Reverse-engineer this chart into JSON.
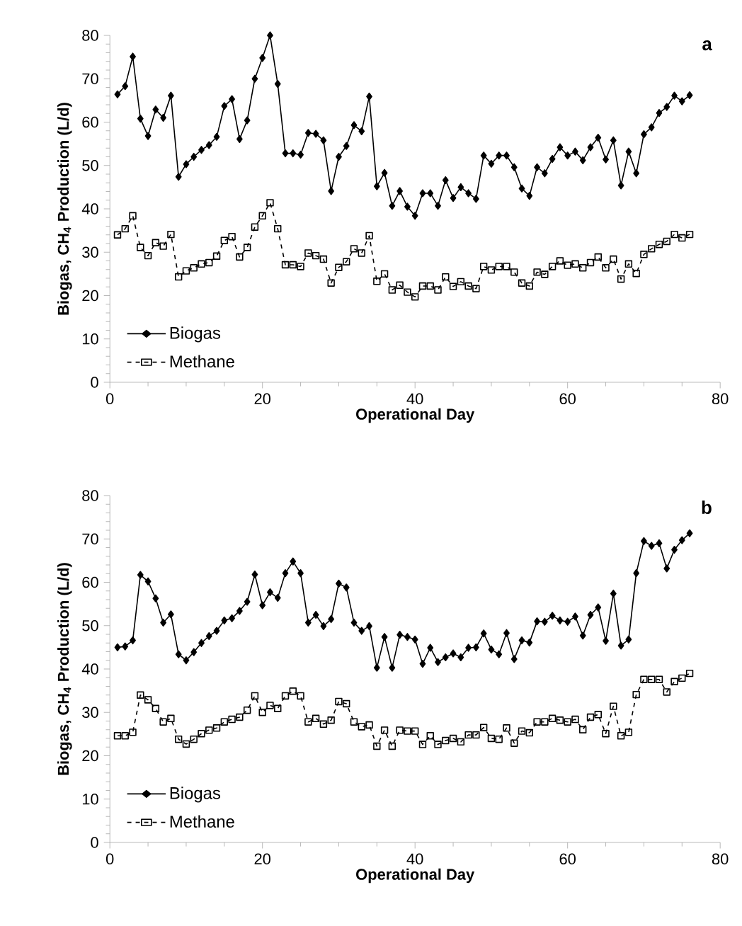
{
  "chart_data": [
    {
      "type": "line",
      "xlabel": "Operational Day",
      "ylabel": "Biogas, CH$_{4}$ Production (L/d)",
      "annotations": [
        "a"
      ],
      "legend": "bottom left",
      "xlim": [
        0,
        80
      ],
      "xticks": [
        0,
        20,
        40,
        60,
        80
      ],
      "ylim": [
        0,
        80
      ],
      "yticks": [
        0,
        10,
        20,
        30,
        40,
        50,
        60,
        70,
        80
      ],
      "x": [
        1,
        2,
        3,
        4,
        5,
        6,
        7,
        8,
        9,
        10,
        11,
        12,
        13,
        14,
        15,
        16,
        17,
        18,
        19,
        20,
        21,
        22,
        23,
        24,
        25,
        26,
        27,
        28,
        29,
        30,
        31,
        32,
        33,
        34,
        35,
        36,
        37,
        38,
        39,
        40,
        41,
        42,
        43,
        44,
        45,
        46,
        47,
        48,
        49,
        50,
        51,
        52,
        53,
        54,
        55,
        56,
        57,
        58,
        59,
        60,
        61,
        62,
        63,
        64,
        65,
        66,
        67,
        68,
        69,
        70,
        71,
        72,
        73,
        74,
        75,
        76
      ],
      "series": [
        {
          "name": "Biogas",
          "color": "#000000",
          "marker": "diamond",
          "line_style": "solid",
          "values": [
            66.4,
            68.3,
            75.1,
            60.8,
            56.8,
            62.9,
            61,
            66.1,
            47.4,
            50.3,
            52,
            53.6,
            54.7,
            56.6,
            63.7,
            65.3,
            56.1,
            60.4,
            70,
            74.8,
            80,
            68.8,
            52.8,
            52.8,
            52.5,
            57.5,
            57.3,
            55.8,
            44.1,
            52,
            54.5,
            59.3,
            57.9,
            65.9,
            45.2,
            48.3,
            40.7,
            44.1,
            40.5,
            38.4,
            43.6,
            43.6,
            40.7,
            46.6,
            42.5,
            45,
            43.6,
            42.3,
            52.3,
            50.4,
            52.3,
            52.3,
            49.6,
            44.7,
            43,
            49.6,
            48.2,
            51.5,
            54.2,
            52.3,
            53.2,
            51.2,
            54.2,
            56.4,
            51.4,
            55.8,
            45.4,
            53.2,
            48.2,
            57.2,
            58.8,
            62.1,
            63.5,
            66.1,
            64.8,
            66.2
          ]
        },
        {
          "name": "Methane",
          "color": "#000000",
          "marker": "square",
          "line_style": "dashed",
          "values": [
            34,
            35.4,
            38.4,
            31.1,
            29.2,
            32.2,
            31.4,
            34.1,
            24.3,
            25.7,
            26.4,
            27.3,
            27.6,
            29.1,
            32.7,
            33.6,
            28.9,
            31.1,
            35.8,
            38.4,
            41.4,
            35.4,
            27.1,
            27.1,
            26.7,
            29.8,
            29.2,
            28.4,
            22.9,
            26.5,
            27.8,
            30.8,
            29.8,
            33.8,
            23.3,
            25,
            21.3,
            22.4,
            20.8,
            19.7,
            22.2,
            22.2,
            21.3,
            24.3,
            22.1,
            23.2,
            22.2,
            21.6,
            26.7,
            25.9,
            26.7,
            26.7,
            25.4,
            22.9,
            22.2,
            25.4,
            24.9,
            26.7,
            28,
            27,
            27.3,
            26.4,
            27.6,
            28.9,
            26.4,
            28.4,
            23.8,
            27.3,
            25.1,
            29.5,
            30.8,
            31.8,
            32.5,
            34.1,
            33.3,
            34.1
          ]
        }
      ]
    },
    {
      "type": "line",
      "xlabel": "Operational Day",
      "ylabel": "Biogas, CH$_{4}$ Production (L/d)",
      "annotations": [
        "b"
      ],
      "legend": "bottom left",
      "xlim": [
        0,
        80
      ],
      "xticks": [
        0,
        20,
        40,
        60,
        80
      ],
      "ylim": [
        0,
        80
      ],
      "yticks": [
        0,
        10,
        20,
        30,
        40,
        50,
        60,
        70,
        80
      ],
      "x": [
        1,
        2,
        3,
        4,
        5,
        6,
        7,
        8,
        9,
        10,
        11,
        12,
        13,
        14,
        15,
        16,
        17,
        18,
        19,
        20,
        21,
        22,
        23,
        24,
        25,
        26,
        27,
        28,
        29,
        30,
        31,
        32,
        33,
        34,
        35,
        36,
        37,
        38,
        39,
        40,
        41,
        42,
        43,
        44,
        45,
        46,
        47,
        48,
        49,
        50,
        51,
        52,
        53,
        54,
        55,
        56,
        57,
        58,
        59,
        60,
        61,
        62,
        63,
        64,
        65,
        66,
        67,
        68,
        69,
        70,
        71,
        72,
        73,
        74,
        75,
        76
      ],
      "series": [
        {
          "name": "Biogas",
          "color": "#000000",
          "marker": "diamond",
          "line_style": "solid",
          "values": [
            45,
            45.2,
            46.6,
            61.7,
            60.2,
            56.3,
            50.7,
            52.6,
            43.4,
            42,
            43.9,
            46,
            47.6,
            48.8,
            51.2,
            51.7,
            53.4,
            55.5,
            61.8,
            54.7,
            57.7,
            56.4,
            62.1,
            64.8,
            62.1,
            50.7,
            52.5,
            49.9,
            51.5,
            59.7,
            58.8,
            50.7,
            48.8,
            49.9,
            40.3,
            47.4,
            40.3,
            47.9,
            47.4,
            46.8,
            41.2,
            44.9,
            41.6,
            42.7,
            43.6,
            42.7,
            44.9,
            45,
            48.2,
            44.5,
            43.4,
            48.3,
            42.3,
            46.6,
            46.1,
            51,
            50.9,
            52.3,
            51.2,
            50.9,
            52.1,
            47.7,
            52.5,
            54.2,
            46.5,
            57.4,
            45.4,
            46.8,
            62.1,
            69.5,
            68.4,
            69,
            63.2,
            67.5,
            69.7,
            71.3
          ]
        },
        {
          "name": "Methane",
          "color": "#000000",
          "marker": "square",
          "line_style": "dashed",
          "values": [
            24.6,
            24.6,
            25.4,
            34,
            32.9,
            30.9,
            27.8,
            28.6,
            23.8,
            22.7,
            23.8,
            25.1,
            25.9,
            26.4,
            27.8,
            28.4,
            28.9,
            30.5,
            33.8,
            30,
            31.6,
            30.9,
            33.8,
            34.9,
            33.8,
            27.8,
            28.6,
            27.3,
            28.2,
            32.5,
            32,
            27.8,
            26.7,
            27.1,
            22.2,
            25.9,
            22.2,
            25.9,
            25.7,
            25.7,
            22.6,
            24.6,
            22.6,
            23.5,
            24,
            23.2,
            24.8,
            24.8,
            26.5,
            24,
            23.8,
            26.4,
            22.9,
            25.7,
            25.3,
            27.8,
            27.8,
            28.6,
            28.2,
            27.8,
            28.4,
            26,
            28.9,
            29.5,
            25.1,
            31.4,
            24.6,
            25.4,
            34.1,
            37.6,
            37.6,
            37.6,
            34.7,
            37.1,
            37.9,
            39
          ]
        }
      ]
    }
  ]
}
